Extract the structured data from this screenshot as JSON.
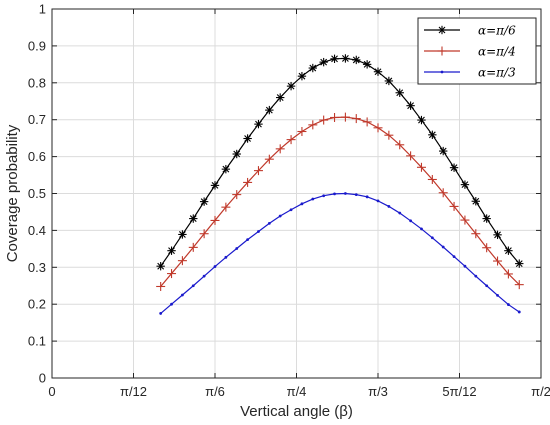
{
  "chart_data": {
    "type": "line",
    "xlabel": "Vertical angle (β)",
    "ylabel": "Coverage probability",
    "xlim": [
      0,
      90
    ],
    "ylim": [
      0,
      1
    ],
    "x_ticks": [
      0,
      15,
      30,
      45,
      60,
      75,
      90
    ],
    "x_tick_labels": [
      "0",
      "π/12",
      "π/6",
      "π/4",
      "π/3",
      "5π/12",
      "π/2"
    ],
    "y_ticks": [
      0,
      0.1,
      0.2,
      0.3,
      0.4,
      0.5,
      0.6,
      0.7,
      0.8,
      0.9,
      1
    ],
    "y_tick_labels": [
      "0",
      "0.1",
      "0.2",
      "0.3",
      "0.4",
      "0.5",
      "0.6",
      "0.7",
      "0.8",
      "0.9",
      "1"
    ],
    "grid": true,
    "legend_position": "top-right",
    "x": [
      20,
      22,
      24,
      26,
      28,
      30,
      32,
      34,
      36,
      38,
      40,
      42,
      44,
      46,
      48,
      50,
      52,
      54,
      56,
      58,
      60,
      62,
      64,
      66,
      68,
      70,
      72,
      74,
      76,
      78,
      80,
      82,
      84,
      86
    ],
    "series": [
      {
        "name": "α=π/6",
        "color": "#000000",
        "marker": "asterisk",
        "values": [
          0.303,
          0.345,
          0.389,
          0.432,
          0.478,
          0.522,
          0.566,
          0.607,
          0.649,
          0.688,
          0.726,
          0.76,
          0.791,
          0.818,
          0.84,
          0.856,
          0.865,
          0.866,
          0.862,
          0.85,
          0.83,
          0.805,
          0.773,
          0.738,
          0.699,
          0.659,
          0.615,
          0.57,
          0.524,
          0.479,
          0.432,
          0.388,
          0.345,
          0.31
        ]
      },
      {
        "name": "α=π/4",
        "color": "#c0392b",
        "marker": "plus",
        "values": [
          0.248,
          0.283,
          0.318,
          0.354,
          0.391,
          0.427,
          0.463,
          0.497,
          0.53,
          0.562,
          0.593,
          0.621,
          0.646,
          0.668,
          0.686,
          0.699,
          0.706,
          0.707,
          0.703,
          0.694,
          0.678,
          0.658,
          0.632,
          0.602,
          0.571,
          0.538,
          0.502,
          0.465,
          0.428,
          0.391,
          0.353,
          0.317,
          0.282,
          0.253
        ]
      },
      {
        "name": "α=π/3",
        "color": "#1a1acc",
        "marker": "dot",
        "values": [
          0.175,
          0.2,
          0.225,
          0.25,
          0.276,
          0.302,
          0.327,
          0.351,
          0.375,
          0.397,
          0.419,
          0.439,
          0.456,
          0.472,
          0.485,
          0.494,
          0.499,
          0.5,
          0.497,
          0.491,
          0.48,
          0.465,
          0.447,
          0.426,
          0.404,
          0.38,
          0.355,
          0.329,
          0.303,
          0.276,
          0.25,
          0.224,
          0.199,
          0.179
        ]
      }
    ]
  }
}
